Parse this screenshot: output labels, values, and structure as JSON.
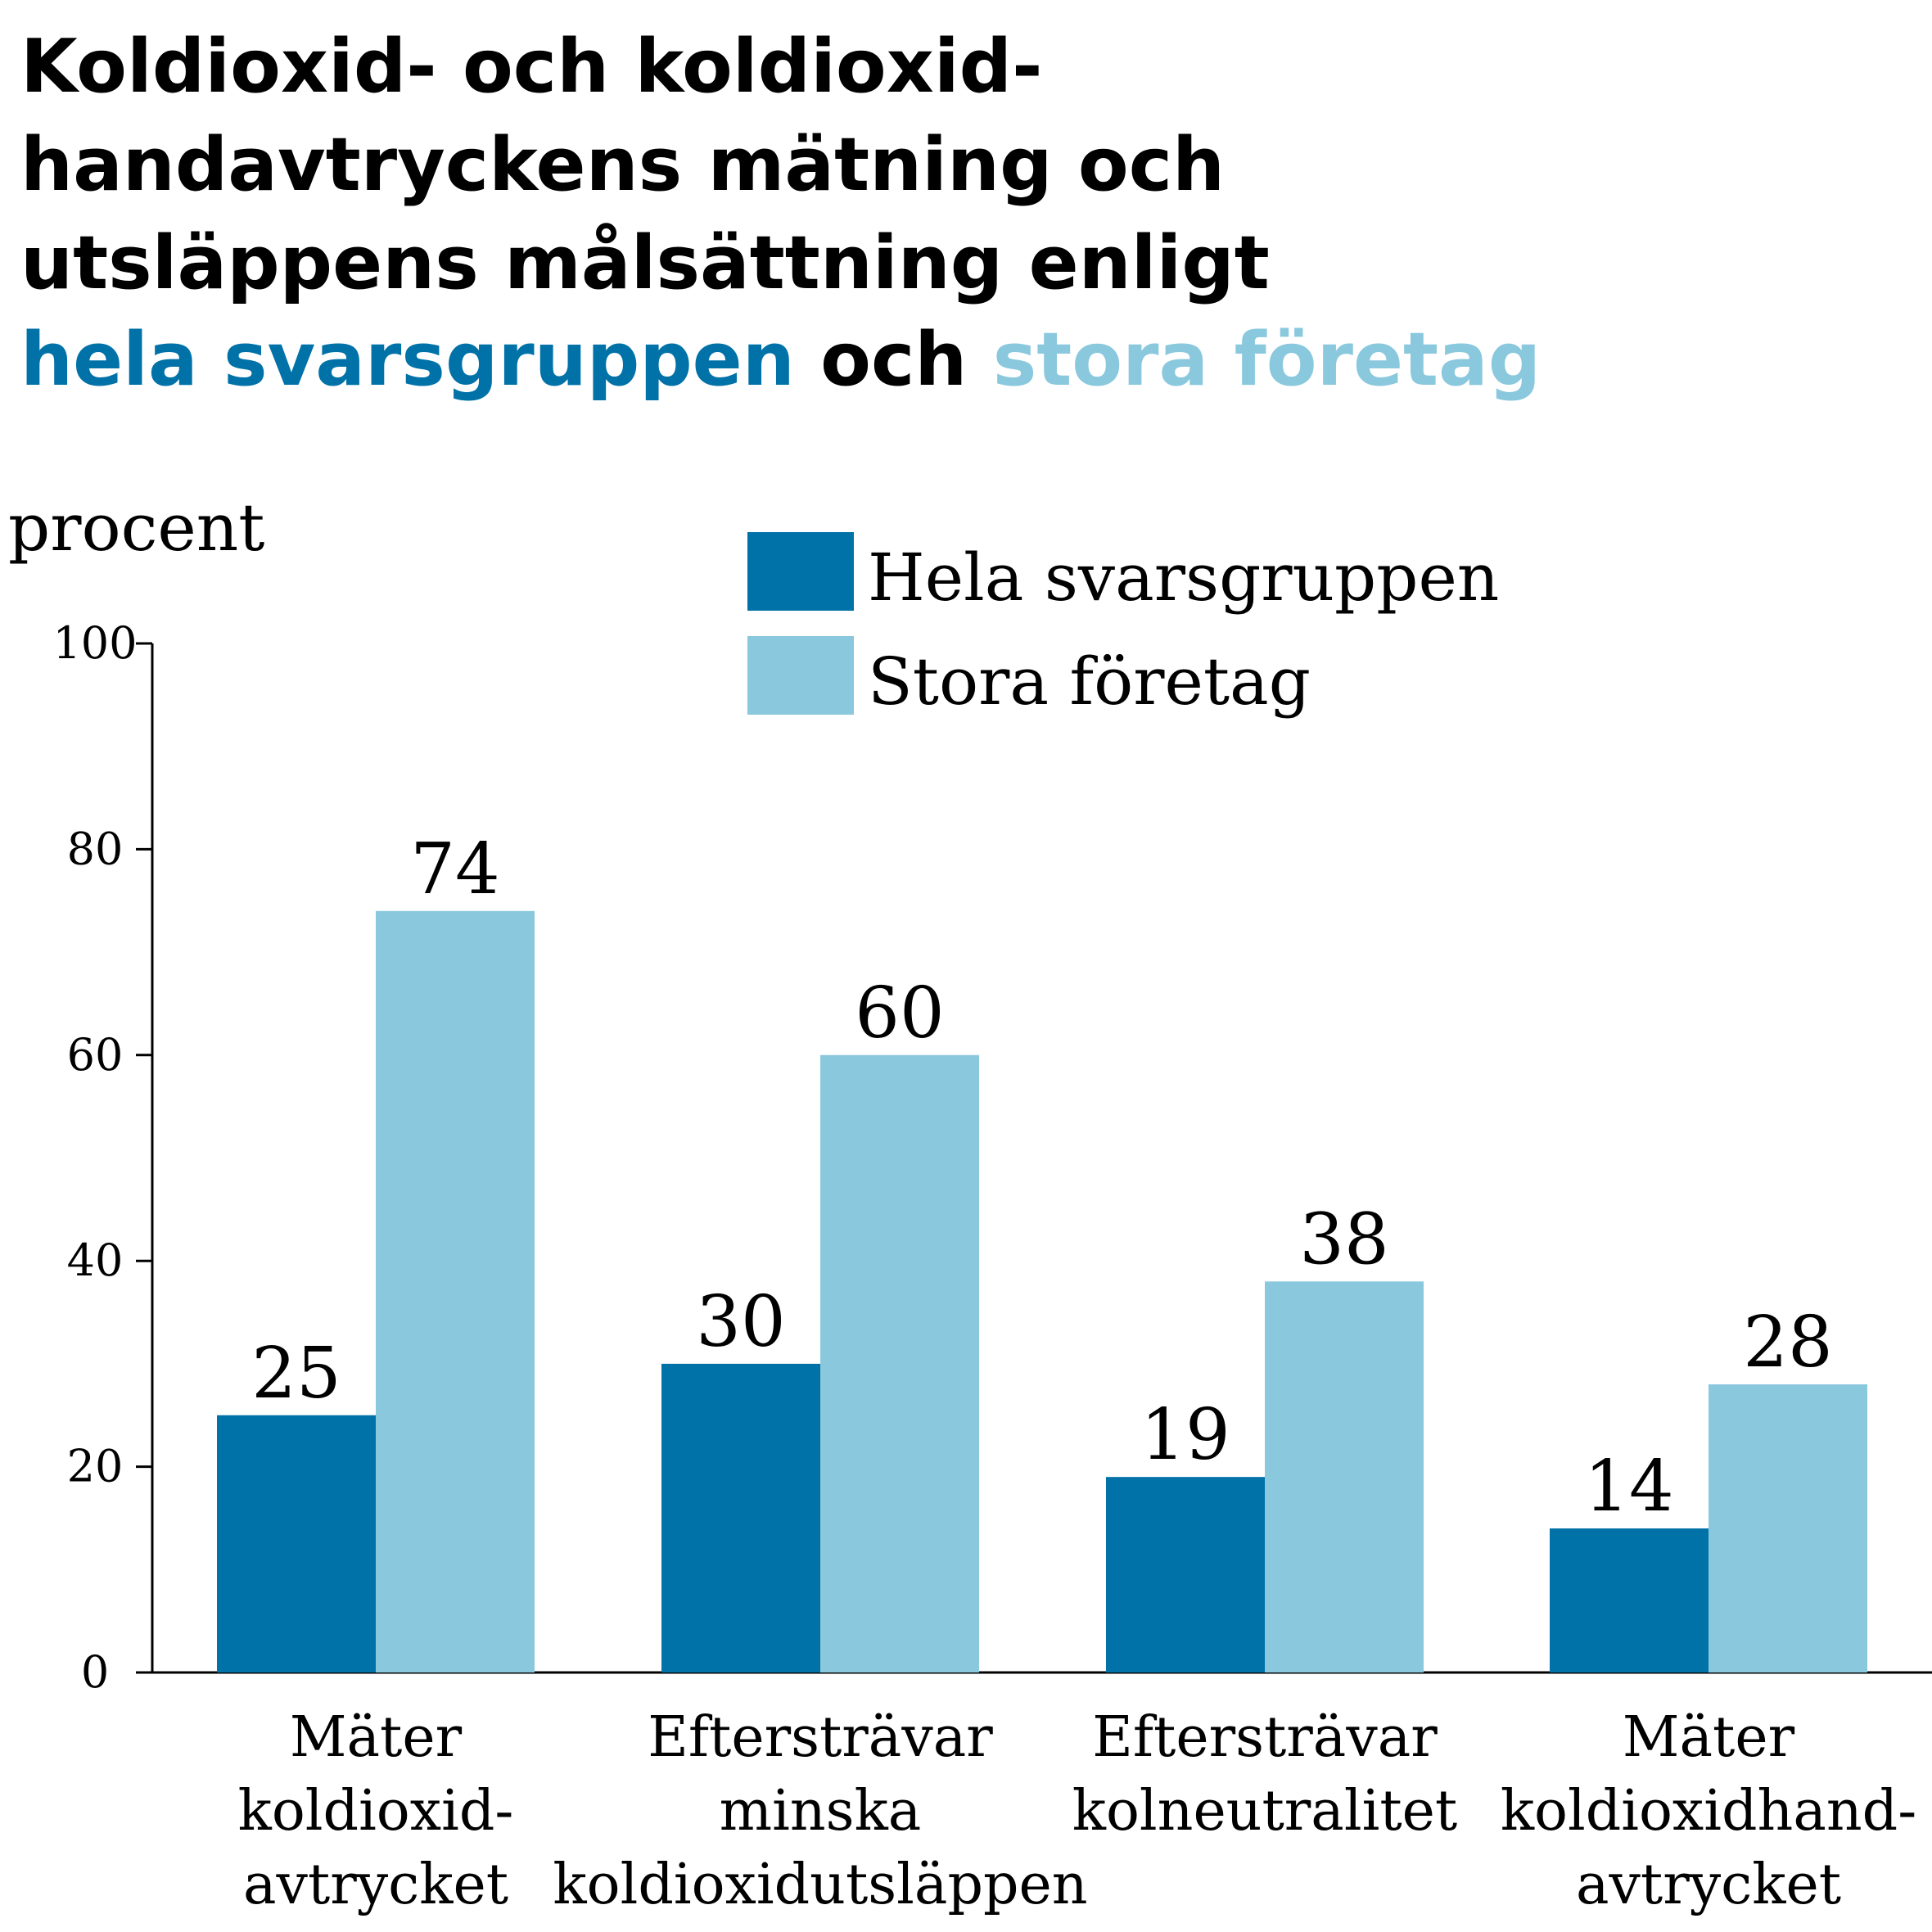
{
  "title": {
    "line1": "Koldioxid- och koldioxid-",
    "line2": "handavtryckens mätning och",
    "line3": "utsläppens målsättning enligt",
    "line4_part1": "hela svarsgruppen",
    "line4_part2": " och ",
    "line4_part3": "stora företag"
  },
  "colors": {
    "series1": "#0072a8",
    "series2": "#8ac8de",
    "text": "#000000"
  },
  "chart_data": {
    "type": "bar",
    "ylabel": "procent",
    "ylim": [
      0,
      100
    ],
    "yticks": [
      0,
      20,
      40,
      60,
      80,
      100
    ],
    "grid": false,
    "legend_position": "top-right",
    "categories": [
      [
        "Mäter",
        "koldioxid-",
        "avtrycket"
      ],
      [
        "Eftersträvar",
        "minska",
        "koldioxidutsläppen"
      ],
      [
        "Eftersträvar",
        "kolneutralitet"
      ],
      [
        "Mäter",
        "koldioxidhand-",
        "avtrycket"
      ]
    ],
    "series": [
      {
        "name": "Hela svarsgruppen",
        "values": [
          25,
          30,
          19,
          14
        ]
      },
      {
        "name": "Stora företag",
        "values": [
          74,
          60,
          38,
          28
        ]
      }
    ]
  }
}
